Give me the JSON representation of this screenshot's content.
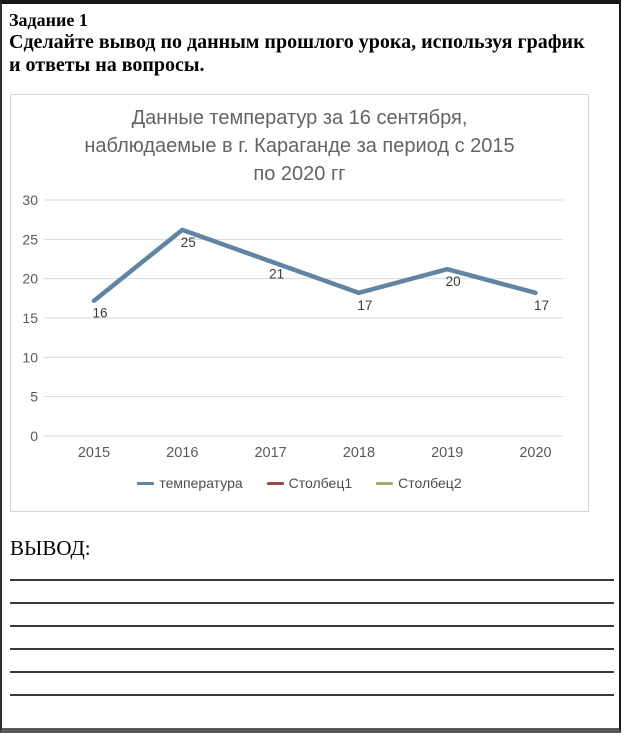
{
  "header": {
    "task_title": "Задание 1",
    "instruction": "Сделайте вывод по данным прошлого урока, используя график и ответы на вопросы."
  },
  "chart_data": {
    "type": "line",
    "title": "Данные температур за 16 сентября, наблюдаемые в г. Караганде за период с 2015 по 2020 гг",
    "title_lines": [
      "Данные температур за 16 сентября,",
      "наблюдаемые в г. Караганде за период с 2015",
      "по 2020 гг"
    ],
    "categories": [
      "2015",
      "2016",
      "2017",
      "2018",
      "2019",
      "2020"
    ],
    "series": [
      {
        "name": "температура",
        "color": "#5f84a4",
        "values": [
          16,
          25,
          21,
          17,
          20,
          17
        ]
      },
      {
        "name": "Столбец1",
        "color": "#a04845",
        "values": []
      },
      {
        "name": "Столбец2",
        "color": "#9fb167",
        "values": []
      }
    ],
    "xlabel": "",
    "ylabel": "",
    "ylim": [
      0,
      30
    ],
    "yticks": [
      0,
      5,
      10,
      15,
      20,
      25,
      30
    ],
    "grid": true,
    "grid_color": "#d9d9d9",
    "axis_text_color": "#595959",
    "data_label_color": "#3d3d3d",
    "data_label_position": "below",
    "legend_position": "bottom",
    "title_color": "#636363"
  },
  "conclusion": {
    "label": "ВЫВОД:",
    "blank_line_count": 6
  }
}
